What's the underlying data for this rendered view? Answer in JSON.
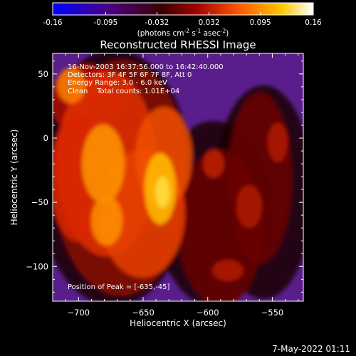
{
  "colorbar": {
    "tick_labels": [
      "-0.16",
      "-0.095",
      "-0.032",
      "0.032",
      "0.095",
      "0.16"
    ],
    "tick_values": [
      -0.16,
      -0.095,
      -0.032,
      0.032,
      0.095,
      0.16
    ],
    "range": [
      -0.16,
      0.16
    ],
    "units_base": "(photons cm",
    "units_exp1": "-2",
    "units_mid": " s",
    "units_exp2": "-1",
    "units_mid2": " asec",
    "units_exp3": "-2",
    "units_end": ")",
    "colors": [
      "#0000ff",
      "#4b0082",
      "#6a0000",
      "#c00000",
      "#ff6a00",
      "#ffd200",
      "#ffffff"
    ]
  },
  "chart_data": {
    "type": "heatmap",
    "title": "Reconstructed RHESSI Image",
    "xlabel": "Heliocentric X (arcsec)",
    "ylabel": "Heliocentric Y (arcsec)",
    "xlim": [
      -720,
      -526
    ],
    "ylim": [
      -127,
      66
    ],
    "x_ticks": [
      -700,
      -650,
      -600,
      -550
    ],
    "y_ticks": [
      50,
      0,
      -50,
      -100
    ],
    "x_tick_labels": [
      "−700",
      "−650",
      "−600",
      "−550"
    ],
    "y_tick_labels": [
      "50",
      "0",
      "−50",
      "−100"
    ],
    "peak": {
      "x": -635,
      "y": -45
    },
    "info_lines": [
      "16-Nov-2003 16:37:56.000 to 16:42:40.000",
      "Detectors: 3F 4F 5F 6F 7F 8F, Att 0",
      "Energy Range: 3.0 - 6.0 keV",
      "Clean    Total counts: 1.01E+04"
    ],
    "peak_label": "Position of Peak = [-635,-45]"
  },
  "footer": {
    "timestamp": "7-May-2022 01:11"
  }
}
